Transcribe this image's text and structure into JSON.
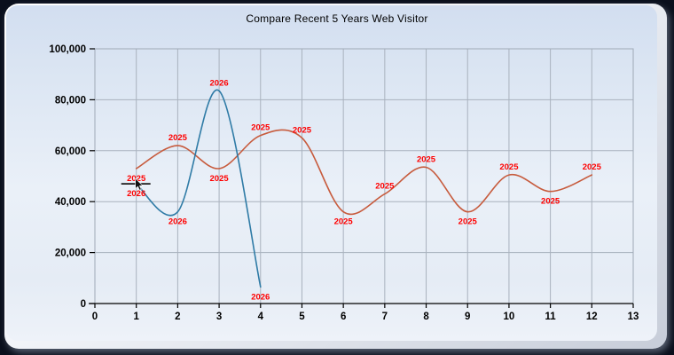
{
  "panel": {
    "outer_background": "#0a0f1c",
    "background_top": "#d2def0",
    "background_bottom": "#eef2f9",
    "grid_color": "#a9b2be",
    "axis_color": "#000000",
    "plot_border_color": "#9fa9b6"
  },
  "chart_data": {
    "type": "line",
    "title": "Compare Recent 5 Years Web Visitor",
    "xlabel": "",
    "ylabel": "",
    "xlim": [
      0,
      13
    ],
    "ylim": [
      0,
      100000
    ],
    "grid": true,
    "legend_position": "none",
    "x_tick_labels": [
      "0",
      "1",
      "2",
      "3",
      "4",
      "5",
      "6",
      "7",
      "8",
      "9",
      "10",
      "11",
      "12",
      "13"
    ],
    "y_tick_values": [
      0,
      20000,
      40000,
      60000,
      80000,
      100000
    ],
    "y_tick_labels": [
      "0",
      "20,000",
      "40,000",
      "60,000",
      "80,000",
      "100,000"
    ],
    "point_label_color": "#ff0000",
    "series": [
      {
        "name": "2025",
        "color": "#c75b3d",
        "points": [
          {
            "x": 1,
            "y": 53000,
            "label": "2025",
            "label_pos": "below"
          },
          {
            "x": 2,
            "y": 62000,
            "label": "2025",
            "label_pos": "above"
          },
          {
            "x": 3,
            "y": 53000,
            "label": "2025",
            "label_pos": "below"
          },
          {
            "x": 4,
            "y": 66000,
            "label": "2025",
            "label_pos": "above"
          },
          {
            "x": 5,
            "y": 65000,
            "label": "2025",
            "label_pos": "above"
          },
          {
            "x": 6,
            "y": 36000,
            "label": "2025",
            "label_pos": "below"
          },
          {
            "x": 7,
            "y": 43000,
            "label": "2025",
            "label_pos": "above"
          },
          {
            "x": 8,
            "y": 53500,
            "label": "2025",
            "label_pos": "above"
          },
          {
            "x": 9,
            "y": 36000,
            "label": "2025",
            "label_pos": "below"
          },
          {
            "x": 10,
            "y": 50500,
            "label": "2025",
            "label_pos": "above"
          },
          {
            "x": 11,
            "y": 44000,
            "label": "2025",
            "label_pos": "below"
          },
          {
            "x": 12,
            "y": 50500,
            "label": "2025",
            "label_pos": "above"
          }
        ]
      },
      {
        "name": "2026",
        "color": "#2f7ba6",
        "points": [
          {
            "x": 1,
            "y": 47000,
            "label": "2026",
            "label_pos": "below"
          },
          {
            "x": 2,
            "y": 36000,
            "label": "2026",
            "label_pos": "below"
          },
          {
            "x": 3,
            "y": 83500,
            "label": "2026",
            "label_pos": "above"
          },
          {
            "x": 4,
            "y": 6500,
            "label": "2026",
            "label_pos": "below"
          }
        ]
      }
    ],
    "cursor": {
      "visible": true,
      "series": "2026",
      "x": 1
    }
  }
}
